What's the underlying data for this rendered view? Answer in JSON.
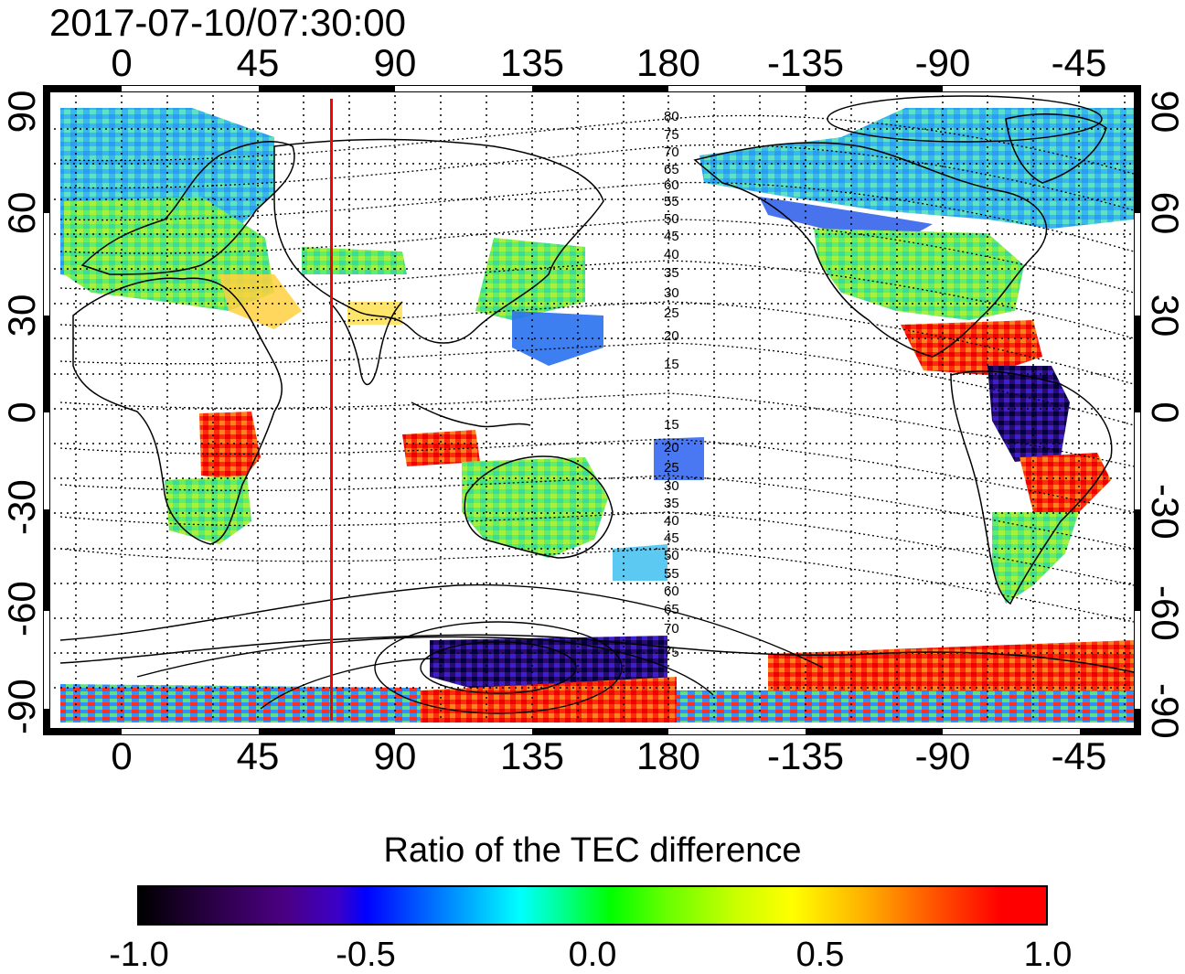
{
  "title": "2017-07-10/07:30:00",
  "x_ticks_top": [
    "0",
    "45",
    "90",
    "135",
    "180",
    "-135",
    "-90",
    "-45"
  ],
  "x_ticks_bottom": [
    "0",
    "45",
    "90",
    "135",
    "180",
    "-135",
    "-90",
    "-45"
  ],
  "y_ticks_left": [
    "90",
    "60",
    "30",
    "0",
    "-30",
    "-60",
    "-90"
  ],
  "y_ticks_right": [
    "90",
    "60",
    "30",
    "0",
    "-30",
    "-60",
    "-90"
  ],
  "contour_labels_north": [
    "80",
    "75",
    "70",
    "65",
    "60",
    "55",
    "50",
    "45",
    "40",
    "35",
    "30",
    "25",
    "20",
    "15"
  ],
  "contour_labels_south": [
    "15",
    "20",
    "25",
    "30",
    "35",
    "40",
    "45",
    "50",
    "55",
    "60",
    "65",
    "70",
    "75"
  ],
  "marker_longitude": 69,
  "colorbar": {
    "title": "Ratio of the TEC difference",
    "ticks": [
      "-1.0",
      "-0.5",
      "0.0",
      "0.5",
      "1.0"
    ],
    "range": [
      -1.0,
      1.0
    ]
  },
  "colors": {
    "marker_line": "#ff0000",
    "frame": "#000000",
    "grid": "#000000"
  }
}
